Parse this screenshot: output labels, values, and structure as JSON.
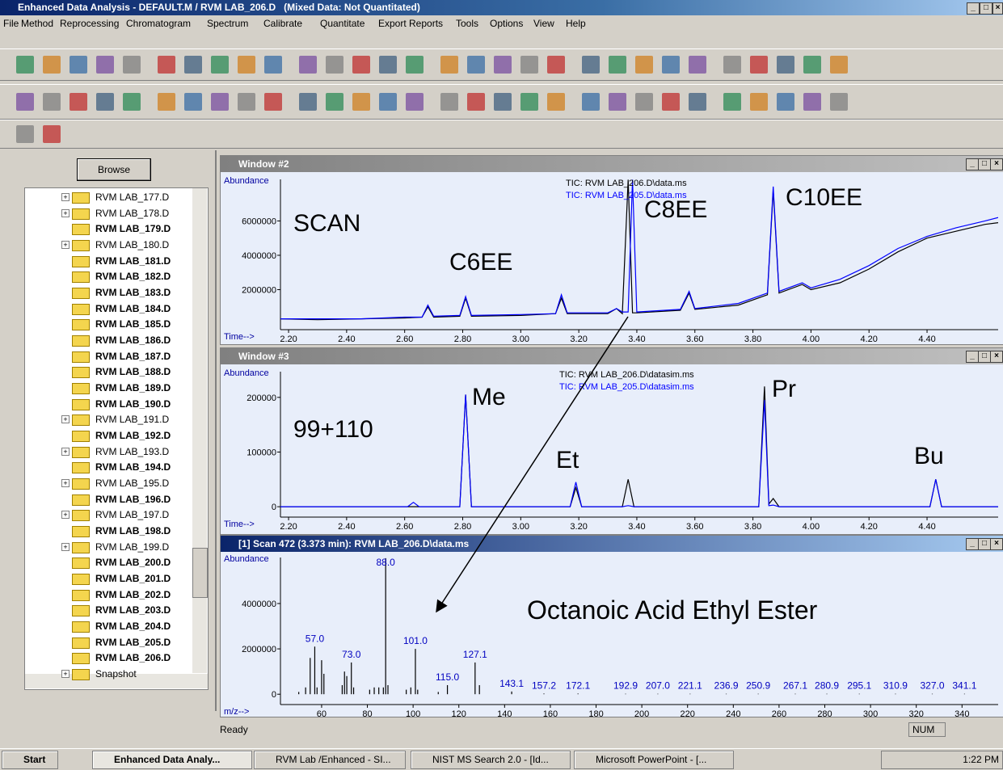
{
  "title_bar": {
    "title": "Enhanced Data Analysis - DEFAULT.M / RVM LAB_206.D   (Mixed Data: Not Quantitated)"
  },
  "menu": [
    "File",
    "Method",
    "Reprocessing",
    "Chromatogram",
    "Spectrum",
    "Calibrate",
    "Quantitate",
    "Export Reports",
    "Tools",
    "Options",
    "View",
    "Help"
  ],
  "browser": {
    "button": "Browse",
    "items": [
      {
        "label": "RVM LAB_177.D",
        "bold": false,
        "expandable": true
      },
      {
        "label": "RVM LAB_178.D",
        "bold": false,
        "expandable": true
      },
      {
        "label": "RVM LAB_179.D",
        "bold": true,
        "expandable": false
      },
      {
        "label": "RVM LAB_180.D",
        "bold": false,
        "expandable": true
      },
      {
        "label": "RVM LAB_181.D",
        "bold": true,
        "expandable": false
      },
      {
        "label": "RVM LAB_182.D",
        "bold": true,
        "expandable": false
      },
      {
        "label": "RVM LAB_183.D",
        "bold": true,
        "expandable": false
      },
      {
        "label": "RVM LAB_184.D",
        "bold": true,
        "expandable": false
      },
      {
        "label": "RVM LAB_185.D",
        "bold": true,
        "expandable": false
      },
      {
        "label": "RVM LAB_186.D",
        "bold": true,
        "expandable": false
      },
      {
        "label": "RVM LAB_187.D",
        "bold": true,
        "expandable": false
      },
      {
        "label": "RVM LAB_188.D",
        "bold": true,
        "expandable": false
      },
      {
        "label": "RVM LAB_189.D",
        "bold": true,
        "expandable": false
      },
      {
        "label": "RVM LAB_190.D",
        "bold": true,
        "expandable": false
      },
      {
        "label": "RVM LAB_191.D",
        "bold": false,
        "expandable": true
      },
      {
        "label": "RVM LAB_192.D",
        "bold": true,
        "expandable": false
      },
      {
        "label": "RVM LAB_193.D",
        "bold": false,
        "expandable": true
      },
      {
        "label": "RVM LAB_194.D",
        "bold": true,
        "expandable": false
      },
      {
        "label": "RVM LAB_195.D",
        "bold": false,
        "expandable": true
      },
      {
        "label": "RVM LAB_196.D",
        "bold": true,
        "expandable": false
      },
      {
        "label": "RVM LAB_197.D",
        "bold": false,
        "expandable": true
      },
      {
        "label": "RVM LAB_198.D",
        "bold": true,
        "expandable": false
      },
      {
        "label": "RVM LAB_199.D",
        "bold": false,
        "expandable": true
      },
      {
        "label": "RVM LAB_200.D",
        "bold": true,
        "expandable": false
      },
      {
        "label": "RVM LAB_201.D",
        "bold": true,
        "expandable": false
      },
      {
        "label": "RVM LAB_202.D",
        "bold": true,
        "expandable": false
      },
      {
        "label": "RVM LAB_203.D",
        "bold": true,
        "expandable": false
      },
      {
        "label": "RVM LAB_204.D",
        "bold": true,
        "expandable": false
      },
      {
        "label": "RVM LAB_205.D",
        "bold": true,
        "expandable": false
      },
      {
        "label": "RVM LAB_206.D",
        "bold": true,
        "expandable": false
      },
      {
        "label": "Snapshot",
        "bold": false,
        "expandable": true
      }
    ]
  },
  "windows": [
    {
      "title": "Window #2",
      "chart": {
        "type": "line",
        "y_label": "Abundance",
        "x_label": "Time-->",
        "x": [
          2.172,
          2.3,
          2.45,
          2.6,
          2.66,
          2.68,
          2.7,
          2.79,
          2.81,
          2.83,
          3.0,
          3.12,
          3.14,
          3.16,
          3.3,
          3.33,
          3.35,
          3.37,
          3.385,
          3.4,
          3.55,
          3.58,
          3.6,
          3.75,
          3.85,
          3.87,
          3.89,
          3.97,
          4.0,
          4.1,
          4.2,
          4.3,
          4.4,
          4.5,
          4.6,
          4.645
        ],
        "series": [
          {
            "name": "TIC: RVM LAB_206.D\\data.ms",
            "color": "#000000",
            "values": [
              300000,
              250000,
              300000,
              350000,
              400000,
              1000000,
              400000,
              450000,
              1500000,
              450000,
              500000,
              600000,
              1500000,
              600000,
              600000,
              900000,
              600000,
              8400000,
              650000,
              650000,
              800000,
              1800000,
              850000,
              1100000,
              1700000,
              7800000,
              1800000,
              2300000,
              2000000,
              2400000,
              3200000,
              4200000,
              5000000,
              5400000,
              5800000,
              5900000
            ]
          },
          {
            "name": "TIC: RVM LAB_205.D\\data.ms",
            "color": "#0000ff",
            "values": [
              300000,
              300000,
              300000,
              400000,
              400000,
              1100000,
              450000,
              500000,
              1600000,
              500000,
              550000,
              600000,
              1700000,
              650000,
              650000,
              900000,
              700000,
              700000,
              8400000,
              700000,
              850000,
              1900000,
              900000,
              1200000,
              1800000,
              8000000,
              1900000,
              2400000,
              2100000,
              2600000,
              3400000,
              4400000,
              5100000,
              5600000,
              6000000,
              6200000
            ]
          }
        ],
        "xlim": [
          2.172,
          4.645
        ],
        "ylim": [
          -330000,
          8420000
        ],
        "xticks": [
          {
            "value": 2.2,
            "label": "2.20"
          },
          {
            "value": 2.4,
            "label": "2.40"
          },
          {
            "value": 2.6,
            "label": "2.60"
          },
          {
            "value": 2.8,
            "label": "2.80"
          },
          {
            "value": 3,
            "label": "3.00"
          },
          {
            "value": 3.2,
            "label": "3.20"
          },
          {
            "value": 3.4,
            "label": "3.40"
          },
          {
            "value": 3.6,
            "label": "3.60"
          },
          {
            "value": 3.8,
            "label": "3.80"
          },
          {
            "value": 4,
            "label": "4.00"
          },
          {
            "value": 4.2,
            "label": "4.20"
          },
          {
            "value": 4.4,
            "label": "4.40"
          }
        ],
        "yticks": [
          2000000,
          4000000,
          6000000
        ],
        "annotations": [
          "SCAN",
          "C6EE",
          "C8EE",
          "C10EE"
        ]
      }
    },
    {
      "title": "Window #3",
      "chart": {
        "type": "line",
        "y_label": "Abundance",
        "x_label": "Time-->",
        "x": [
          2.172,
          2.61,
          2.63,
          2.65,
          2.79,
          2.81,
          2.83,
          3.17,
          3.19,
          3.21,
          3.35,
          3.37,
          3.39,
          3.82,
          3.84,
          3.855,
          3.87,
          3.89,
          4.41,
          4.43,
          4.45,
          4.645
        ],
        "series": [
          {
            "name": "TIC: RVM LAB_206.D\\datasim.ms",
            "color": "#000000",
            "values": [
              0,
              0,
              0,
              0,
              0,
              205000,
              0,
              0,
              35000,
              0,
              0,
              50000,
              0,
              0,
              220000,
              5000,
              15000,
              0,
              0,
              50000,
              0,
              0
            ]
          },
          {
            "name": "TIC: RVM LAB_205.D\\datasim.ms",
            "color": "#0000ff",
            "values": [
              0,
              0,
              8000,
              0,
              0,
              205000,
              0,
              0,
              45000,
              0,
              0,
              2000,
              0,
              0,
              195000,
              2000,
              3000,
              0,
              0,
              50000,
              0,
              0
            ]
          }
        ],
        "xlim": [
          2.172,
          4.645
        ],
        "ylim": [
          -19000,
          247000
        ],
        "xticks": [
          {
            "value": 2.2,
            "label": "2.20"
          },
          {
            "value": 2.4,
            "label": "2.40"
          },
          {
            "value": 2.6,
            "label": "2.60"
          },
          {
            "value": 2.8,
            "label": "2.80"
          },
          {
            "value": 3,
            "label": "3.00"
          },
          {
            "value": 3.2,
            "label": "3.20"
          },
          {
            "value": 3.4,
            "label": "3.40"
          },
          {
            "value": 3.6,
            "label": "3.60"
          },
          {
            "value": 3.8,
            "label": "3.80"
          },
          {
            "value": 4,
            "label": "4.00"
          },
          {
            "value": 4.2,
            "label": "4.20"
          },
          {
            "value": 4.4,
            "label": "4.40"
          }
        ],
        "yticks": [
          0,
          100000,
          200000
        ],
        "annotations": [
          "99+110",
          "Me",
          "Et",
          "Pr",
          "Bu"
        ]
      }
    },
    {
      "title": "[1] Scan 472 (3.373 min): RVM LAB_206.D\\data.ms",
      "chart": {
        "type": "bar",
        "y_label": "Abundance",
        "x_label": "m/z-->",
        "x": [
          50,
          53,
          55,
          57,
          58,
          60,
          61,
          69,
          70,
          71,
          73,
          74,
          81,
          83,
          85,
          87,
          88,
          89,
          97,
          99,
          101,
          102,
          111,
          115,
          127.1,
          129,
          143.1,
          157.2,
          172.1,
          192.9,
          207,
          221.1,
          236.9,
          250.9,
          267.1,
          280.9,
          295.1,
          310.9,
          327,
          341.1
        ],
        "values": [
          100000,
          300000,
          1600000,
          2100000,
          300000,
          1500000,
          900000,
          400000,
          1000000,
          800000,
          1400000,
          300000,
          200000,
          300000,
          300000,
          300000,
          6000000,
          400000,
          200000,
          300000,
          2000000,
          200000,
          100000,
          400000,
          1400000,
          400000,
          120000,
          30000,
          30000,
          20000,
          20000,
          20000,
          20000,
          20000,
          20000,
          20000,
          20000,
          20000,
          20000,
          20000
        ],
        "peak_labels": [
          null,
          null,
          null,
          "57.0",
          null,
          null,
          null,
          null,
          null,
          null,
          "73.0",
          null,
          null,
          null,
          null,
          null,
          "88.0",
          null,
          null,
          null,
          "101.0",
          null,
          null,
          "115.0",
          "127.1",
          null,
          "143.1",
          "157.2",
          "172.1",
          "192.9",
          "207.0",
          "221.1",
          "236.9",
          "250.9",
          "267.1",
          "280.9",
          "295.1",
          "310.9",
          "327.0",
          "341.1"
        ],
        "color": "#000000",
        "xlim": [
          42,
          355.8
        ],
        "ylim": [
          -456000,
          6030000
        ],
        "xticks": [
          60,
          80,
          100,
          120,
          140,
          160,
          180,
          200,
          220,
          240,
          260,
          280,
          300,
          320,
          340
        ],
        "yticks": [
          0,
          2000000,
          4000000
        ],
        "annotations": [
          "Octanoic Acid Ethyl Ester"
        ]
      }
    }
  ],
  "status_bar": {
    "text": "Ready",
    "indicator": "NUM"
  },
  "taskbar": {
    "start": "Start",
    "tasks": [
      "Enhanced Data Analy...",
      "RVM Lab /Enhanced - SI...",
      "NIST MS Search 2.0 - [Id...",
      "Microsoft PowerPoint - [..."
    ],
    "clock": "1:22 PM"
  }
}
